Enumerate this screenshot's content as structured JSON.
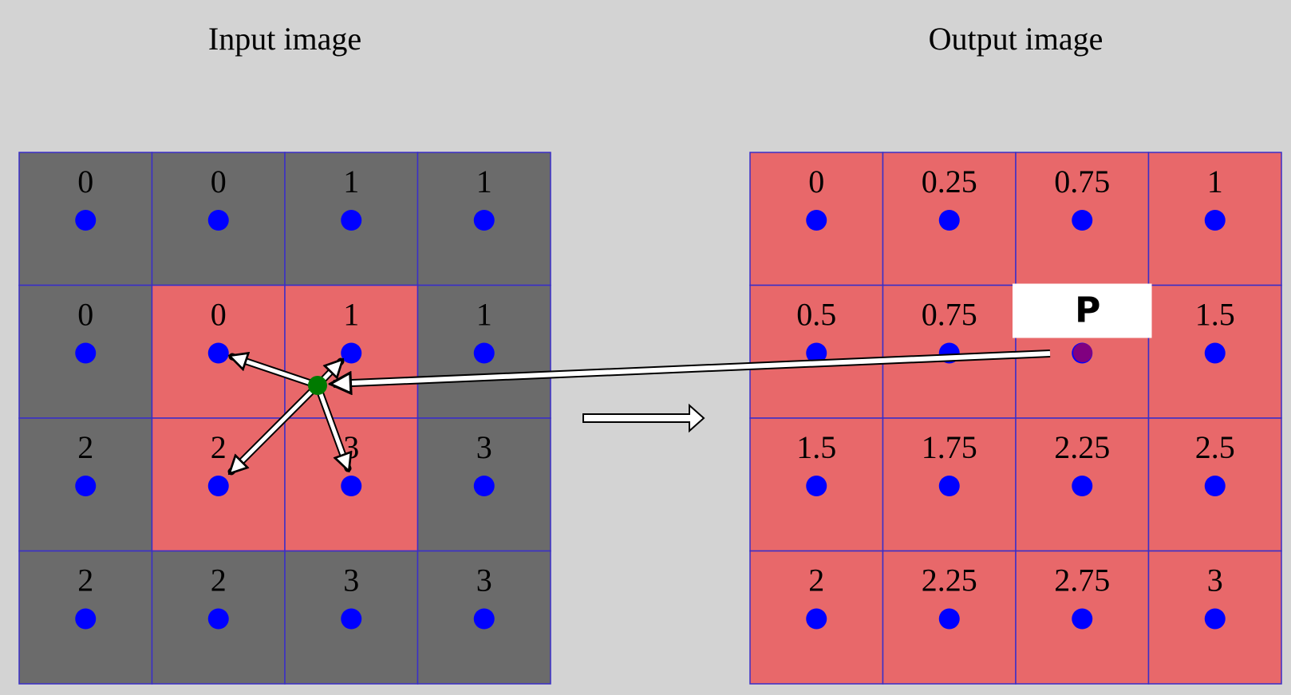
{
  "titles": {
    "input": "Input image",
    "output": "Output image"
  },
  "colors": {
    "background": "#d3d3d3",
    "gray_cell": "#6b6b6b",
    "red_cell": "#e8686a",
    "grid_line": "#3a2ec8",
    "pixel_dot": "#0000ff",
    "sample_dot": "#007a00",
    "target_dot": "#800080",
    "arrow_fill": "#ffffff",
    "arrow_stroke": "#000000",
    "label_box": "#ffffff"
  },
  "input_grid": {
    "values": [
      [
        "0",
        "0",
        "1",
        "1"
      ],
      [
        "0",
        "0",
        "1",
        "1"
      ],
      [
        "2",
        "2",
        "3",
        "3"
      ],
      [
        "2",
        "2",
        "3",
        "3"
      ]
    ],
    "highlight": [
      [
        0,
        0,
        0,
        0
      ],
      [
        0,
        1,
        1,
        0
      ],
      [
        0,
        1,
        1,
        0
      ],
      [
        0,
        0,
        0,
        0
      ]
    ]
  },
  "output_grid": {
    "values": [
      [
        "0",
        "0.25",
        "0.75",
        "1"
      ],
      [
        "0.5",
        "0.75",
        "P",
        "1.5"
      ],
      [
        "1.5",
        "1.75",
        "2.25",
        "2.5"
      ],
      [
        "2",
        "2.25",
        "2.75",
        "3"
      ]
    ],
    "label_cell": [
      1,
      2
    ],
    "label_text": "P"
  }
}
